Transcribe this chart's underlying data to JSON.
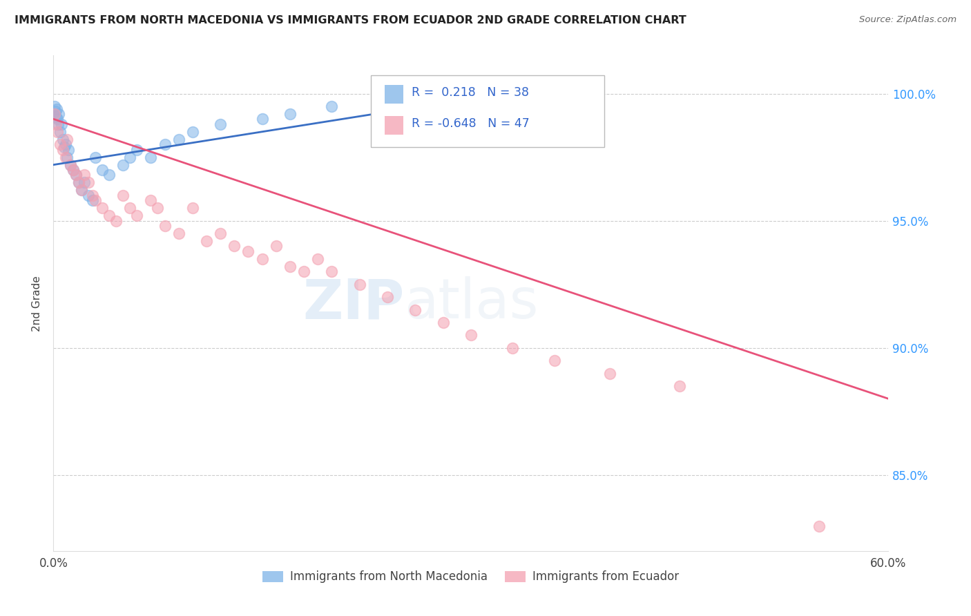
{
  "title": "IMMIGRANTS FROM NORTH MACEDONIA VS IMMIGRANTS FROM ECUADOR 2ND GRADE CORRELATION CHART",
  "source": "Source: ZipAtlas.com",
  "ylabel": "2nd Grade",
  "watermark_zip": "ZIP",
  "watermark_atlas": "atlas",
  "xlim": [
    0.0,
    60.0
  ],
  "ylim": [
    82.0,
    101.5
  ],
  "x_tick_vals": [
    0.0,
    15.0,
    30.0,
    45.0,
    60.0
  ],
  "x_tick_labels": [
    "0.0%",
    "",
    "",
    "",
    "60.0%"
  ],
  "y_tick_vals": [
    85.0,
    90.0,
    95.0,
    100.0
  ],
  "y_tick_labels": [
    "85.0%",
    "90.0%",
    "95.0%",
    "100.0%"
  ],
  "blue_color": "#7EB3E8",
  "pink_color": "#F4A0B0",
  "blue_line_color": "#3A6FC4",
  "pink_line_color": "#E8527A",
  "R_blue": 0.218,
  "N_blue": 38,
  "R_pink": -0.648,
  "N_pink": 47,
  "legend_R_N_color": "#3366CC",
  "legend_label_blue": "Immigrants from North Macedonia",
  "legend_label_pink": "Immigrants from Ecuador",
  "blue_scatter_x": [
    0.1,
    0.15,
    0.2,
    0.25,
    0.3,
    0.35,
    0.4,
    0.5,
    0.6,
    0.7,
    0.8,
    0.9,
    1.0,
    1.1,
    1.2,
    1.4,
    1.6,
    1.8,
    2.0,
    2.2,
    2.5,
    2.8,
    3.0,
    3.5,
    4.0,
    5.0,
    5.5,
    6.0,
    7.0,
    8.0,
    9.0,
    10.0,
    12.0,
    15.0,
    17.0,
    20.0,
    25.0,
    30.0
  ],
  "blue_scatter_y": [
    99.5,
    99.3,
    99.1,
    99.4,
    99.0,
    98.8,
    99.2,
    98.5,
    98.8,
    98.2,
    97.9,
    98.0,
    97.5,
    97.8,
    97.2,
    97.0,
    96.8,
    96.5,
    96.2,
    96.5,
    96.0,
    95.8,
    97.5,
    97.0,
    96.8,
    97.2,
    97.5,
    97.8,
    97.5,
    98.0,
    98.2,
    98.5,
    98.8,
    99.0,
    99.2,
    99.5,
    99.8,
    100.0
  ],
  "pink_scatter_x": [
    0.1,
    0.2,
    0.3,
    0.5,
    0.7,
    0.9,
    1.0,
    1.2,
    1.4,
    1.6,
    1.8,
    2.0,
    2.2,
    2.5,
    2.8,
    3.0,
    3.5,
    4.0,
    4.5,
    5.0,
    5.5,
    6.0,
    7.0,
    7.5,
    8.0,
    9.0,
    10.0,
    11.0,
    12.0,
    13.0,
    14.0,
    15.0,
    16.0,
    17.0,
    18.0,
    19.0,
    20.0,
    22.0,
    24.0,
    26.0,
    28.0,
    30.0,
    33.0,
    36.0,
    40.0,
    45.0,
    55.0
  ],
  "pink_scatter_y": [
    99.2,
    98.8,
    98.5,
    98.0,
    97.8,
    97.5,
    98.2,
    97.2,
    97.0,
    96.8,
    96.5,
    96.2,
    96.8,
    96.5,
    96.0,
    95.8,
    95.5,
    95.2,
    95.0,
    96.0,
    95.5,
    95.2,
    95.8,
    95.5,
    94.8,
    94.5,
    95.5,
    94.2,
    94.5,
    94.0,
    93.8,
    93.5,
    94.0,
    93.2,
    93.0,
    93.5,
    93.0,
    92.5,
    92.0,
    91.5,
    91.0,
    90.5,
    90.0,
    89.5,
    89.0,
    88.5,
    83.0
  ],
  "blue_line_x": [
    0.0,
    30.0
  ],
  "blue_line_y": [
    97.2,
    99.8
  ],
  "pink_line_x": [
    0.0,
    60.0
  ],
  "pink_line_y": [
    99.0,
    88.0
  ]
}
